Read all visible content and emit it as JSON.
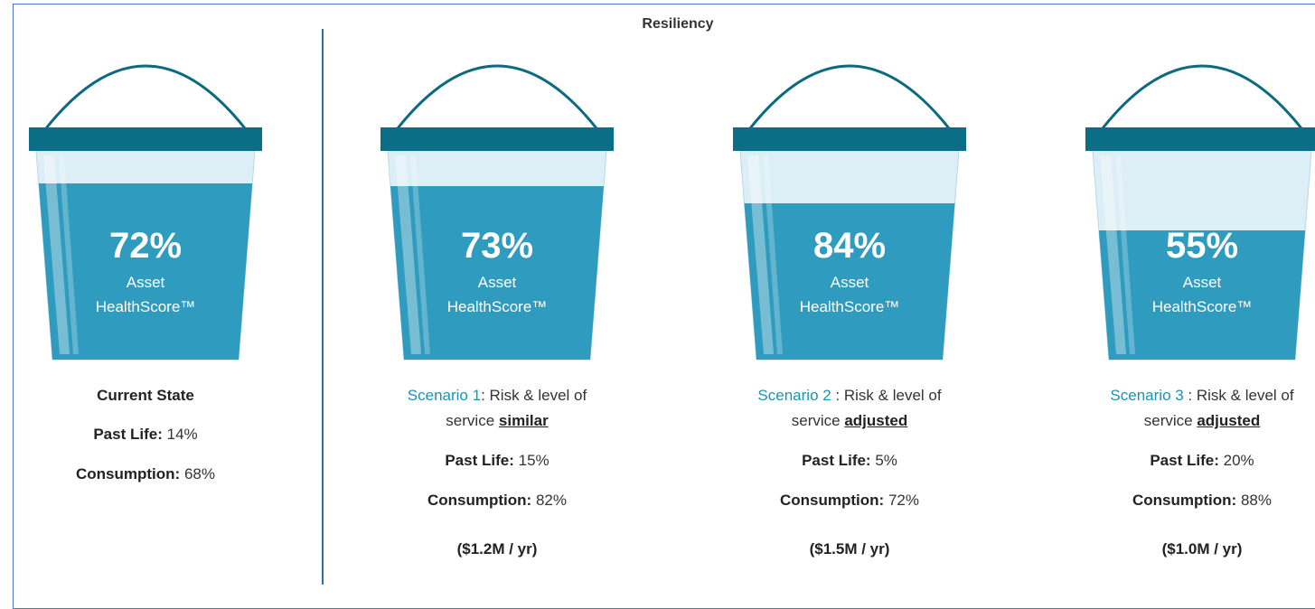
{
  "title": "Resiliency",
  "current": {
    "score": "72%",
    "label_line1": "Asset",
    "label_line2": "HealthScore™",
    "heading": "Current State",
    "past_life_label": "Past Life:",
    "past_life": "14%",
    "consumption_label": "Consumption:",
    "consumption": "68%"
  },
  "scenarios": [
    {
      "score": "73%",
      "label_line1": "Asset",
      "label_line2": "HealthScore™",
      "name": "Scenario 1",
      "description_line1": ": Risk & level of",
      "description_line2": "service",
      "emphasis": "similar",
      "past_life_label": "Past Life:",
      "past_life": "15%",
      "consumption_label": "Consumption:",
      "consumption": "82%",
      "cost": "($1.2M / yr)"
    },
    {
      "score": "84%",
      "label_line1": "Asset",
      "label_line2": "HealthScore™",
      "name": "Scenario 2",
      "description_line1": " : Risk & level of",
      "description_line2": "service",
      "emphasis": "adjusted",
      "past_life_label": "Past Life:",
      "past_life": "5%",
      "consumption_label": "Consumption:",
      "consumption": "72%",
      "cost": "($1.5M / yr)"
    },
    {
      "score": "55%",
      "label_line1": "Asset",
      "label_line2": "HealthScore™",
      "name": "Scenario 3",
      "description_line1": " : Risk & level of",
      "description_line2": "service",
      "emphasis": "adjusted",
      "past_life_label": "Past Life:",
      "past_life": "20%",
      "consumption_label": "Consumption:",
      "consumption": "88%",
      "cost": "($1.0M / yr)"
    }
  ]
}
